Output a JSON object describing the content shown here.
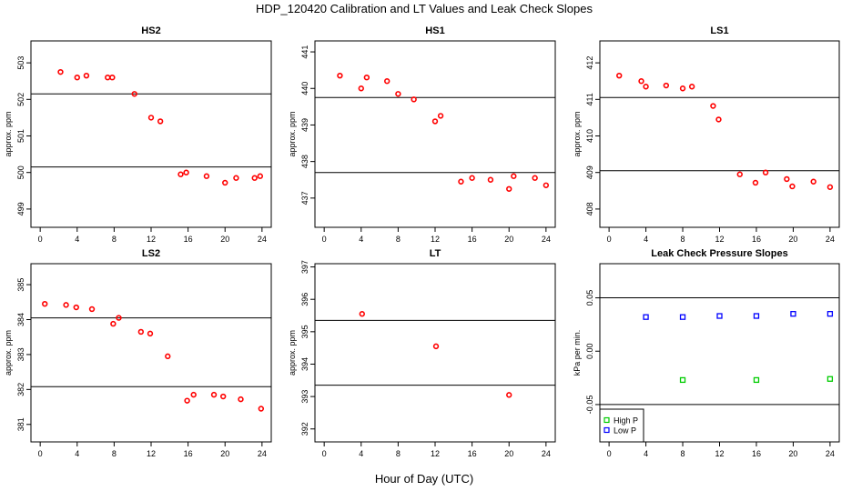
{
  "figure": {
    "title": "HDP_120420  Calibration and LT Values and Leak Check Slopes",
    "xlabel": "Hour of Day (UTC)"
  },
  "chart_data": [
    {
      "id": "hs2",
      "type": "scatter",
      "title": "HS2",
      "ylabel": "approx. ppm",
      "xlim": [
        -1,
        25
      ],
      "ylim": [
        498.5,
        503.6
      ],
      "xticks": [
        "0",
        "4",
        "8",
        "12",
        "16",
        "20",
        "24"
      ],
      "yticks": [
        "499",
        "500",
        "501",
        "502",
        "503"
      ],
      "grid": false,
      "hlines": [
        502.15,
        500.15
      ],
      "series": [
        {
          "color": "#ff0000",
          "marker": "circle",
          "points": [
            [
              2.2,
              502.75
            ],
            [
              4,
              502.6
            ],
            [
              5,
              502.65
            ],
            [
              7.3,
              502.6
            ],
            [
              7.8,
              502.6
            ],
            [
              10.2,
              502.15
            ],
            [
              12,
              501.5
            ],
            [
              13,
              501.4
            ],
            [
              15.2,
              499.95
            ],
            [
              15.8,
              500.0
            ],
            [
              18,
              499.9
            ],
            [
              20,
              499.72
            ],
            [
              21.2,
              499.85
            ],
            [
              23.2,
              499.85
            ],
            [
              23.8,
              499.9
            ]
          ]
        }
      ]
    },
    {
      "id": "hs1",
      "type": "scatter",
      "title": "HS1",
      "ylabel": "approx. ppm",
      "xlim": [
        -1,
        25
      ],
      "ylim": [
        436.2,
        441.3
      ],
      "xticks": [
        "0",
        "4",
        "8",
        "12",
        "16",
        "20",
        "24"
      ],
      "yticks": [
        "437",
        "438",
        "439",
        "440",
        "441"
      ],
      "grid": false,
      "hlines": [
        439.75,
        437.7
      ],
      "series": [
        {
          "color": "#ff0000",
          "marker": "circle",
          "points": [
            [
              1.7,
              440.35
            ],
            [
              4,
              440.0
            ],
            [
              4.6,
              440.3
            ],
            [
              6.8,
              440.2
            ],
            [
              8,
              439.85
            ],
            [
              9.7,
              439.7
            ],
            [
              12,
              439.1
            ],
            [
              12.6,
              439.25
            ],
            [
              14.8,
              437.45
            ],
            [
              16,
              437.55
            ],
            [
              18,
              437.5
            ],
            [
              20,
              437.25
            ],
            [
              20.5,
              437.6
            ],
            [
              22.8,
              437.55
            ],
            [
              24,
              437.35
            ]
          ]
        }
      ]
    },
    {
      "id": "ls1",
      "type": "scatter",
      "title": "LS1",
      "ylabel": "approx. ppm",
      "xlim": [
        -1,
        25
      ],
      "ylim": [
        407.5,
        412.6
      ],
      "xticks": [
        "0",
        "4",
        "8",
        "12",
        "16",
        "20",
        "24"
      ],
      "yticks": [
        "408",
        "409",
        "410",
        "411",
        "412"
      ],
      "grid": false,
      "hlines": [
        411.05,
        409.05
      ],
      "series": [
        {
          "color": "#ff0000",
          "marker": "circle",
          "points": [
            [
              1.1,
              411.65
            ],
            [
              3.5,
              411.5
            ],
            [
              4,
              411.35
            ],
            [
              6.2,
              411.38
            ],
            [
              8,
              411.3
            ],
            [
              9,
              411.35
            ],
            [
              11.3,
              410.82
            ],
            [
              11.9,
              410.45
            ],
            [
              14.2,
              408.95
            ],
            [
              15.9,
              408.72
            ],
            [
              17,
              409.0
            ],
            [
              19.3,
              408.82
            ],
            [
              19.9,
              408.62
            ],
            [
              22.2,
              408.75
            ],
            [
              24,
              408.6
            ]
          ]
        }
      ]
    },
    {
      "id": "ls2",
      "type": "scatter",
      "title": "LS2",
      "ylabel": "approx. ppm",
      "xlim": [
        -1,
        25
      ],
      "ylim": [
        380.5,
        385.6
      ],
      "xticks": [
        "0",
        "4",
        "8",
        "12",
        "16",
        "20",
        "24"
      ],
      "yticks": [
        "381",
        "382",
        "383",
        "384",
        "385"
      ],
      "grid": false,
      "hlines": [
        384.05,
        382.08
      ],
      "series": [
        {
          "color": "#ff0000",
          "marker": "circle",
          "points": [
            [
              0.5,
              384.45
            ],
            [
              2.8,
              384.42
            ],
            [
              3.9,
              384.35
            ],
            [
              5.6,
              384.3
            ],
            [
              7.9,
              383.88
            ],
            [
              8.5,
              384.05
            ],
            [
              10.9,
              383.65
            ],
            [
              11.9,
              383.6
            ],
            [
              13.8,
              382.95
            ],
            [
              15.9,
              381.68
            ],
            [
              16.6,
              381.85
            ],
            [
              18.8,
              381.85
            ],
            [
              19.8,
              381.8
            ],
            [
              21.7,
              381.72
            ],
            [
              23.9,
              381.45
            ]
          ]
        }
      ]
    },
    {
      "id": "lt",
      "type": "scatter",
      "title": "LT",
      "ylabel": "approx. ppm",
      "xlim": [
        -1,
        25
      ],
      "ylim": [
        391.6,
        397.1
      ],
      "xticks": [
        "0",
        "4",
        "8",
        "12",
        "16",
        "20",
        "24"
      ],
      "yticks": [
        "392",
        "393",
        "394",
        "395",
        "396",
        "397"
      ],
      "grid": false,
      "hlines": [
        395.35,
        393.35
      ],
      "series": [
        {
          "color": "#ff0000",
          "marker": "circle",
          "points": [
            [
              4.1,
              395.55
            ],
            [
              12.1,
              394.55
            ],
            [
              20,
              393.05
            ]
          ]
        }
      ]
    },
    {
      "id": "leak",
      "type": "scatter",
      "title": "Leak Check Pressure Slopes",
      "ylabel": "kPa per min.",
      "xlim": [
        -1,
        25
      ],
      "ylim": [
        -0.085,
        0.082
      ],
      "xticks": [
        "0",
        "4",
        "8",
        "12",
        "16",
        "20",
        "24"
      ],
      "yticks": [
        "-0.05",
        "0.00",
        "0.05"
      ],
      "grid": false,
      "hlines": [
        0.05,
        -0.05
      ],
      "legend": {
        "position": "bottom-left",
        "entries": [
          "High P",
          "Low P"
        ]
      },
      "series": [
        {
          "name": "High P",
          "color": "#00cc00",
          "marker": "square",
          "points": [
            [
              8,
              -0.027
            ],
            [
              16,
              -0.027
            ],
            [
              24,
              -0.026
            ]
          ]
        },
        {
          "name": "Low P",
          "color": "#0000ff",
          "marker": "square",
          "points": [
            [
              4,
              0.032
            ],
            [
              8,
              0.032
            ],
            [
              12,
              0.033
            ],
            [
              16,
              0.033
            ],
            [
              20,
              0.035
            ],
            [
              24,
              0.035
            ]
          ]
        }
      ]
    }
  ]
}
